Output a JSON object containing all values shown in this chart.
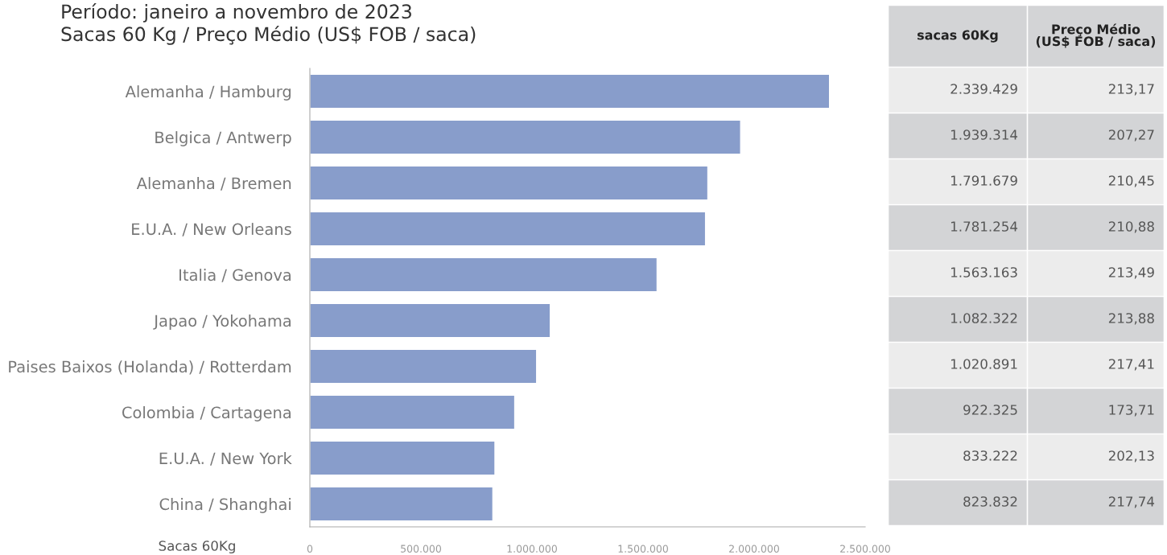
{
  "chart_data": [
    {
      "type": "bar",
      "orientation": "horizontal",
      "title": "Período: janeiro a novembro de 2023",
      "subtitle": "Sacas 60 Kg / Preço Médio (US$ FOB / saca)",
      "xlabel": "Sacas 60Kg",
      "categories": [
        "Alemanha / Hamburg",
        "Belgica / Antwerp",
        "Alemanha / Bremen",
        "E.U.A. / New Orleans",
        "Italia / Genova",
        "Japao / Yokohama",
        "Paises Baixos (Holanda) / Rotterdam",
        "Colombia / Cartagena",
        "E.U.A. / New York",
        "China / Shanghai"
      ],
      "values": [
        2339429,
        1939314,
        1791679,
        1781254,
        1563163,
        1082322,
        1020891,
        922325,
        833222,
        823832
      ],
      "value_labels": [
        "2.339.429",
        "1.939.314",
        "1.791.679",
        "1.781.254",
        "1.563.163",
        "1.082.322",
        "1.020.891",
        "922.325",
        "833.222",
        "823.832"
      ],
      "annotations": [
        "sacas 60Kg"
      ],
      "color": "#889dcb",
      "xlim": [
        0,
        2500000
      ],
      "xticks": [
        0,
        {
          "value": 500000,
          "label": "500.000"
        },
        {
          "value": 1000000,
          "label": "1.000.000"
        },
        {
          "value": 1500000,
          "label": "1.500.000"
        },
        {
          "value": 2000000,
          "label": "2.000.000"
        },
        {
          "value": 2500000,
          "label": "2.500.000"
        }
      ],
      "grid": false,
      "legend": false
    },
    {
      "type": "other",
      "title": "Preço Médio\n(US$ FOB / saca)",
      "values": [
        213.17,
        207.27,
        210.45,
        210.88,
        213.49,
        213.88,
        217.41,
        173.71,
        202.13,
        217.74
      ],
      "value_labels": [
        "213,17",
        "207,27",
        "210,45",
        "210,88",
        "213,49",
        "213,88",
        "217,41",
        "173,71",
        "202,13",
        "217,74"
      ]
    }
  ]
}
